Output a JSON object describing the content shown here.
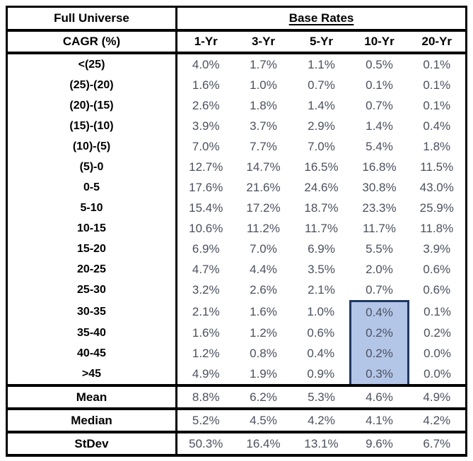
{
  "table": {
    "corner_title": "Full Universe",
    "group_header": "Base Rates",
    "row_header_title": "CAGR (%)",
    "columns": [
      "1-Yr",
      "3-Yr",
      "5-Yr",
      "10-Yr",
      "20-Yr"
    ],
    "rows": [
      {
        "label": "<(25)",
        "values": [
          "4.0%",
          "1.7%",
          "1.1%",
          "0.5%",
          "0.1%"
        ]
      },
      {
        "label": "(25)-(20)",
        "values": [
          "1.6%",
          "1.0%",
          "0.7%",
          "0.1%",
          "0.1%"
        ]
      },
      {
        "label": "(20)-(15)",
        "values": [
          "2.6%",
          "1.8%",
          "1.4%",
          "0.7%",
          "0.1%"
        ]
      },
      {
        "label": "(15)-(10)",
        "values": [
          "3.9%",
          "3.7%",
          "2.9%",
          "1.4%",
          "0.4%"
        ]
      },
      {
        "label": "(10)-(5)",
        "values": [
          "7.0%",
          "7.7%",
          "7.0%",
          "5.4%",
          "1.8%"
        ]
      },
      {
        "label": "(5)-0",
        "values": [
          "12.7%",
          "14.7%",
          "16.5%",
          "16.8%",
          "11.5%"
        ]
      },
      {
        "label": "0-5",
        "values": [
          "17.6%",
          "21.6%",
          "24.6%",
          "30.8%",
          "43.0%"
        ]
      },
      {
        "label": "5-10",
        "values": [
          "15.4%",
          "17.2%",
          "18.7%",
          "23.3%",
          "25.9%"
        ]
      },
      {
        "label": "10-15",
        "values": [
          "10.6%",
          "11.2%",
          "11.7%",
          "11.7%",
          "11.8%"
        ]
      },
      {
        "label": "15-20",
        "values": [
          "6.9%",
          "7.0%",
          "6.9%",
          "5.5%",
          "3.9%"
        ]
      },
      {
        "label": "20-25",
        "values": [
          "4.7%",
          "4.4%",
          "3.5%",
          "2.0%",
          "0.6%"
        ]
      },
      {
        "label": "25-30",
        "values": [
          "3.2%",
          "2.6%",
          "2.1%",
          "0.7%",
          "0.6%"
        ]
      },
      {
        "label": "30-35",
        "values": [
          "2.1%",
          "1.6%",
          "1.0%",
          "0.4%",
          "0.1%"
        ]
      },
      {
        "label": "35-40",
        "values": [
          "1.6%",
          "1.2%",
          "0.6%",
          "0.2%",
          "0.2%"
        ]
      },
      {
        "label": "40-45",
        "values": [
          "1.2%",
          "0.8%",
          "0.4%",
          "0.2%",
          "0.0%"
        ]
      },
      {
        "label": ">45",
        "values": [
          "4.9%",
          "1.9%",
          "0.9%",
          "0.3%",
          "0.0%"
        ]
      }
    ],
    "summary": [
      {
        "label": "Mean",
        "values": [
          "8.8%",
          "6.2%",
          "5.3%",
          "4.6%",
          "4.9%"
        ]
      },
      {
        "label": "Median",
        "values": [
          "5.2%",
          "4.5%",
          "4.2%",
          "4.1%",
          "4.2%"
        ]
      },
      {
        "label": "StDev",
        "values": [
          "50.3%",
          "16.4%",
          "13.1%",
          "9.6%",
          "6.7%"
        ]
      }
    ],
    "highlight": {
      "column": "10-Yr",
      "rows": [
        "30-35",
        "35-40",
        "40-45",
        ">45"
      ],
      "fill_color": "#b4c6e7",
      "border_color": "#1f3864"
    }
  },
  "chart_data": {
    "type": "table",
    "title": "Full Universe — Base Rates",
    "row_header": "CAGR (%)",
    "columns": [
      "1-Yr",
      "3-Yr",
      "5-Yr",
      "10-Yr",
      "20-Yr"
    ],
    "units": "percent",
    "rows": [
      {
        "label": "<(25)",
        "values": [
          4.0,
          1.7,
          1.1,
          0.5,
          0.1
        ]
      },
      {
        "label": "(25)-(20)",
        "values": [
          1.6,
          1.0,
          0.7,
          0.1,
          0.1
        ]
      },
      {
        "label": "(20)-(15)",
        "values": [
          2.6,
          1.8,
          1.4,
          0.7,
          0.1
        ]
      },
      {
        "label": "(15)-(10)",
        "values": [
          3.9,
          3.7,
          2.9,
          1.4,
          0.4
        ]
      },
      {
        "label": "(10)-(5)",
        "values": [
          7.0,
          7.7,
          7.0,
          5.4,
          1.8
        ]
      },
      {
        "label": "(5)-0",
        "values": [
          12.7,
          14.7,
          16.5,
          16.8,
          11.5
        ]
      },
      {
        "label": "0-5",
        "values": [
          17.6,
          21.6,
          24.6,
          30.8,
          43.0
        ]
      },
      {
        "label": "5-10",
        "values": [
          15.4,
          17.2,
          18.7,
          23.3,
          25.9
        ]
      },
      {
        "label": "10-15",
        "values": [
          10.6,
          11.2,
          11.7,
          11.7,
          11.8
        ]
      },
      {
        "label": "15-20",
        "values": [
          6.9,
          7.0,
          6.9,
          5.5,
          3.9
        ]
      },
      {
        "label": "20-25",
        "values": [
          4.7,
          4.4,
          3.5,
          2.0,
          0.6
        ]
      },
      {
        "label": "25-30",
        "values": [
          3.2,
          2.6,
          2.1,
          0.7,
          0.6
        ]
      },
      {
        "label": "30-35",
        "values": [
          2.1,
          1.6,
          1.0,
          0.4,
          0.1
        ]
      },
      {
        "label": "35-40",
        "values": [
          1.6,
          1.2,
          0.6,
          0.2,
          0.2
        ]
      },
      {
        "label": "40-45",
        "values": [
          1.2,
          0.8,
          0.4,
          0.2,
          0.0
        ]
      },
      {
        "label": ">45",
        "values": [
          4.9,
          1.9,
          0.9,
          0.3,
          0.0
        ]
      }
    ],
    "summary": [
      {
        "label": "Mean",
        "values": [
          8.8,
          6.2,
          5.3,
          4.6,
          4.9
        ]
      },
      {
        "label": "Median",
        "values": [
          5.2,
          4.5,
          4.2,
          4.1,
          4.2
        ]
      },
      {
        "label": "StDev",
        "values": [
          50.3,
          16.4,
          13.1,
          9.6,
          6.7
        ]
      }
    ],
    "highlight": {
      "column": "10-Yr",
      "rows": [
        "30-35",
        "35-40",
        "40-45",
        ">45"
      ]
    }
  }
}
